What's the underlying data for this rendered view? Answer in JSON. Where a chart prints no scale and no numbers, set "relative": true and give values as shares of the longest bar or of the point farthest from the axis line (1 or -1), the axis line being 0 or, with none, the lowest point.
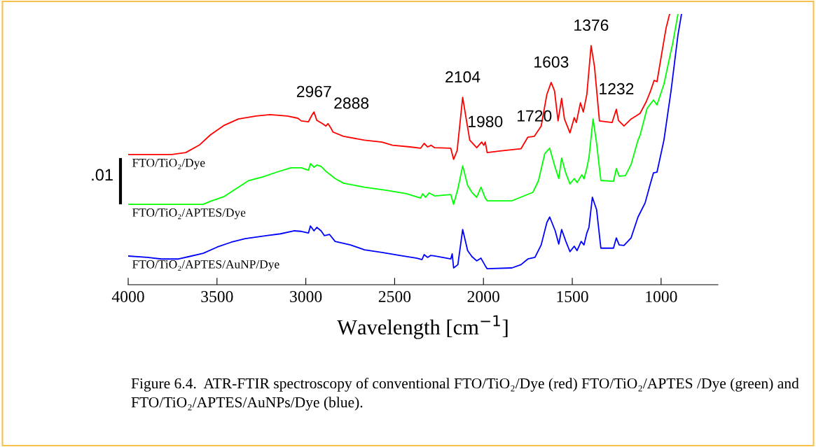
{
  "chart_data": {
    "type": "line",
    "relative": true,
    "xlabel": "Wavelength [cm$^{−1}$]",
    "x": [
      4000,
      3755,
      3676,
      3597,
      3538,
      3459,
      3380,
      3281,
      3202,
      3104,
      3045,
      3025,
      2985,
      2966,
      2954,
      2938,
      2906,
      2887,
      2875,
      2859,
      2847,
      2788,
      2670,
      2571,
      2512,
      2413,
      2354,
      2334,
      2314,
      2294,
      2275,
      2184,
      2168,
      2148,
      2117,
      2097,
      2077,
      2038,
      2010,
      1998,
      1990,
      1979,
      1908,
      1789,
      1750,
      1714,
      1675,
      1643,
      1619,
      1600,
      1580,
      1560,
      1544,
      1513,
      1489,
      1477,
      1454,
      1438,
      1418,
      1394,
      1375,
      1347,
      1276,
      1252,
      1240,
      1209,
      1169,
      1118,
      1083,
      1059,
      1039,
      1023,
      992,
      972,
      952
    ],
    "xlim": [
      4000,
      680
    ],
    "xticks": [
      4000,
      3500,
      3000,
      2500,
      2000,
      1500,
      1000
    ],
    "tick_labels": "x",
    "grid": false,
    "legend": false,
    "series": [
      {
        "name": "FTO/TiO₂/Dye",
        "color": "#ff0000",
        "values": [
          0.481,
          0.481,
          0.488,
          0.517,
          0.553,
          0.589,
          0.612,
          0.623,
          0.628,
          0.623,
          0.615,
          0.605,
          0.602,
          0.626,
          0.638,
          0.607,
          0.595,
          0.586,
          0.595,
          0.579,
          0.564,
          0.548,
          0.534,
          0.527,
          0.515,
          0.509,
          0.504,
          0.522,
          0.509,
          0.515,
          0.506,
          0.504,
          0.463,
          0.496,
          0.692,
          0.612,
          0.534,
          0.506,
          0.527,
          0.515,
          0.527,
          0.488,
          0.494,
          0.502,
          0.545,
          0.548,
          0.586,
          0.703,
          0.747,
          0.716,
          0.605,
          0.688,
          0.612,
          0.561,
          0.617,
          0.599,
          0.672,
          0.638,
          0.703,
          0.883,
          0.806,
          0.605,
          0.599,
          0.648,
          0.607,
          0.586,
          0.612,
          0.633,
          0.677,
          0.716,
          0.755,
          0.75,
          0.871,
          0.948,
          1.0
        ]
      },
      {
        "name": "FTO/TiO₂/APTES/Dye",
        "color": "#00ff00",
        "x": [
          4000,
          3578,
          3538,
          3459,
          3380,
          3321,
          3242,
          3163,
          3084,
          3025,
          2985,
          2974,
          2954,
          2938,
          2914,
          2887,
          2835,
          2788,
          2670,
          2551,
          2433,
          2354,
          2342,
          2326,
          2306,
          2275,
          2184,
          2168,
          2144,
          2117,
          2089,
          2065,
          2038,
          2014,
          1990,
          1979,
          1840,
          1722,
          1690,
          1655,
          1627,
          1596,
          1576,
          1560,
          1536,
          1513,
          1489,
          1473,
          1446,
          1434,
          1418,
          1406,
          1383,
          1363,
          1339,
          1268,
          1252,
          1236,
          1201,
          1169,
          1130,
          1118,
          1079,
          1043,
          1023,
          984,
          933,
          905
        ],
        "values": [
          0.297,
          0.297,
          0.308,
          0.326,
          0.36,
          0.385,
          0.398,
          0.416,
          0.432,
          0.432,
          0.423,
          0.447,
          0.434,
          0.442,
          0.437,
          0.419,
          0.392,
          0.375,
          0.36,
          0.349,
          0.336,
          0.32,
          0.336,
          0.323,
          0.339,
          0.328,
          0.333,
          0.297,
          0.354,
          0.439,
          0.367,
          0.341,
          0.323,
          0.36,
          0.32,
          0.31,
          0.31,
          0.341,
          0.385,
          0.484,
          0.504,
          0.432,
          0.392,
          0.468,
          0.411,
          0.372,
          0.392,
          0.377,
          0.406,
          0.391,
          0.432,
          0.47,
          0.612,
          0.522,
          0.385,
          0.382,
          0.429,
          0.401,
          0.403,
          0.444,
          0.534,
          0.553,
          0.651,
          0.682,
          0.664,
          0.741,
          0.897,
          1.0
        ]
      },
      {
        "name": "FTO/TiO₂/APTES/AuNP/Dye",
        "color": "#0000ff",
        "x": [
          4000,
          3893,
          3814,
          3716,
          3657,
          3578,
          3499,
          3420,
          3341,
          3222,
          3143,
          3064,
          3025,
          2985,
          2974,
          2954,
          2938,
          2914,
          2895,
          2867,
          2835,
          2749,
          2670,
          2571,
          2472,
          2374,
          2346,
          2334,
          2314,
          2298,
          2275,
          2184,
          2176,
          2168,
          2144,
          2117,
          2089,
          2065,
          2038,
          2014,
          1990,
          1979,
          1840,
          1789,
          1750,
          1710,
          1675,
          1643,
          1627,
          1596,
          1576,
          1560,
          1536,
          1513,
          1489,
          1473,
          1450,
          1434,
          1418,
          1406,
          1387,
          1363,
          1339,
          1268,
          1252,
          1236,
          1209,
          1169,
          1130,
          1090,
          1063,
          1043,
          1023,
          984,
          944,
          905,
          885
        ],
        "values": [
          0.106,
          0.101,
          0.095,
          0.095,
          0.104,
          0.116,
          0.139,
          0.157,
          0.17,
          0.181,
          0.188,
          0.199,
          0.197,
          0.191,
          0.217,
          0.199,
          0.212,
          0.199,
          0.181,
          0.186,
          0.16,
          0.147,
          0.129,
          0.119,
          0.108,
          0.098,
          0.093,
          0.111,
          0.101,
          0.108,
          0.106,
          0.095,
          0.114,
          0.062,
          0.074,
          0.204,
          0.126,
          0.104,
          0.088,
          0.098,
          0.07,
          0.059,
          0.062,
          0.074,
          0.095,
          0.101,
          0.147,
          0.23,
          0.25,
          0.199,
          0.15,
          0.204,
          0.16,
          0.122,
          0.142,
          0.126,
          0.16,
          0.147,
          0.191,
          0.212,
          0.323,
          0.277,
          0.135,
          0.135,
          0.173,
          0.147,
          0.145,
          0.173,
          0.25,
          0.302,
          0.367,
          0.413,
          0.416,
          0.534,
          0.716,
          0.923,
          1.0
        ]
      }
    ],
    "annotations": [
      {
        "text": "2967",
        "x": 2954,
        "y": 0.638
      },
      {
        "text": "2888",
        "x": 2875,
        "y": 0.595
      },
      {
        "text": "2104",
        "x": 2117,
        "y": 0.692
      },
      {
        "text": "1980",
        "x": 1990,
        "y": 0.527
      },
      {
        "text": "1720",
        "x": 1714,
        "y": 0.548
      },
      {
        "text": "1603",
        "x": 1619,
        "y": 0.747
      },
      {
        "text": "1376",
        "x": 1394,
        "y": 0.883
      },
      {
        "text": "1232",
        "x": 1252,
        "y": 0.648
      },
      ".01",
      "Figure 6.4.  ATR-FTIR spectroscopy of conventional FTO/TiO₂/Dye (red) FTO/TiO₂/APTES /Dye (green) and FTO/TiO₂/APTES/AuNPs/Dye (blue)."
    ]
  }
}
